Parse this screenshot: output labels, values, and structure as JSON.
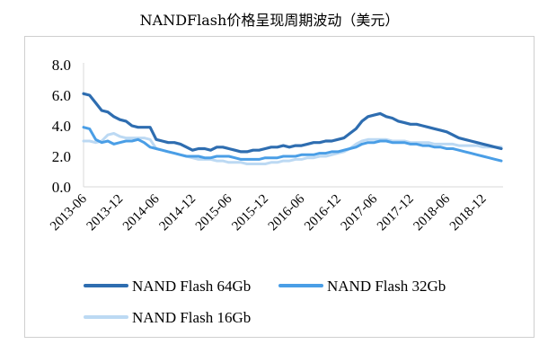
{
  "chart_data": {
    "type": "line",
    "title": "NANDFlash价格呈现周期波动（美元）",
    "xlabel": "",
    "ylabel": "",
    "ylim": [
      0,
      8
    ],
    "yticks": [
      "0.0",
      "2.0",
      "4.0",
      "6.0",
      "8.0"
    ],
    "xticks": [
      "2013-06",
      "2013-12",
      "2014-06",
      "2014-12",
      "2015-06",
      "2015-12",
      "2016-06",
      "2016-12",
      "2017-06",
      "2017-12",
      "2018-06",
      "2018-12"
    ],
    "grid": false,
    "legend_position": "bottom",
    "x": [
      "2013-06",
      "2013-07",
      "2013-08",
      "2013-09",
      "2013-10",
      "2013-11",
      "2013-12",
      "2014-01",
      "2014-02",
      "2014-03",
      "2014-04",
      "2014-05",
      "2014-06",
      "2014-07",
      "2014-08",
      "2014-09",
      "2014-10",
      "2014-11",
      "2014-12",
      "2015-01",
      "2015-02",
      "2015-03",
      "2015-04",
      "2015-05",
      "2015-06",
      "2015-07",
      "2015-08",
      "2015-09",
      "2015-10",
      "2015-11",
      "2015-12",
      "2016-01",
      "2016-02",
      "2016-03",
      "2016-04",
      "2016-05",
      "2016-06",
      "2016-07",
      "2016-08",
      "2016-09",
      "2016-10",
      "2016-11",
      "2016-12",
      "2017-01",
      "2017-02",
      "2017-03",
      "2017-04",
      "2017-05",
      "2017-06",
      "2017-07",
      "2017-08",
      "2017-09",
      "2017-10",
      "2017-11",
      "2017-12",
      "2018-01",
      "2018-02",
      "2018-03",
      "2018-04",
      "2018-05",
      "2018-06",
      "2018-07",
      "2018-08",
      "2018-09",
      "2018-10",
      "2018-11",
      "2018-12",
      "2019-01",
      "2019-02",
      "2019-03"
    ],
    "series": [
      {
        "name": "NAND Flash 64Gb",
        "color": "#2e6db0",
        "values": [
          6.1,
          6.0,
          5.5,
          5.0,
          4.9,
          4.6,
          4.4,
          4.3,
          4.0,
          3.9,
          3.9,
          3.9,
          3.1,
          3.0,
          2.9,
          2.9,
          2.8,
          2.6,
          2.4,
          2.5,
          2.5,
          2.4,
          2.6,
          2.6,
          2.5,
          2.4,
          2.3,
          2.3,
          2.4,
          2.4,
          2.5,
          2.6,
          2.6,
          2.7,
          2.6,
          2.7,
          2.7,
          2.8,
          2.9,
          2.9,
          3.0,
          3.0,
          3.1,
          3.2,
          3.5,
          3.8,
          4.3,
          4.6,
          4.7,
          4.8,
          4.6,
          4.5,
          4.3,
          4.2,
          4.1,
          4.1,
          4.0,
          3.9,
          3.8,
          3.7,
          3.6,
          3.4,
          3.2,
          3.1,
          3.0,
          2.9,
          2.8,
          2.7,
          2.6,
          2.5
        ]
      },
      {
        "name": "NAND Flash 32Gb",
        "color": "#4a9ee6",
        "values": [
          3.9,
          3.8,
          3.1,
          2.9,
          3.0,
          2.8,
          2.9,
          3.0,
          3.0,
          3.1,
          2.9,
          2.6,
          2.5,
          2.4,
          2.3,
          2.2,
          2.1,
          2.0,
          2.0,
          2.0,
          1.9,
          1.9,
          2.0,
          2.0,
          2.0,
          1.9,
          1.8,
          1.8,
          1.8,
          1.8,
          1.9,
          1.9,
          1.9,
          2.0,
          2.0,
          2.0,
          2.1,
          2.1,
          2.1,
          2.2,
          2.2,
          2.3,
          2.3,
          2.4,
          2.5,
          2.6,
          2.8,
          2.9,
          2.9,
          3.0,
          3.0,
          2.9,
          2.9,
          2.9,
          2.8,
          2.8,
          2.7,
          2.7,
          2.6,
          2.6,
          2.5,
          2.5,
          2.4,
          2.3,
          2.2,
          2.1,
          2.0,
          1.9,
          1.8,
          1.7
        ]
      },
      {
        "name": "NAND Flash 16Gb",
        "color": "#bcd9f3",
        "values": [
          3.0,
          3.0,
          2.9,
          3.0,
          3.4,
          3.5,
          3.3,
          3.2,
          3.2,
          3.2,
          3.2,
          3.1,
          2.5,
          2.4,
          2.3,
          2.2,
          2.1,
          2.0,
          1.9,
          1.8,
          1.8,
          1.8,
          1.7,
          1.7,
          1.6,
          1.6,
          1.6,
          1.5,
          1.5,
          1.5,
          1.5,
          1.6,
          1.6,
          1.7,
          1.7,
          1.8,
          1.8,
          1.9,
          1.9,
          2.0,
          2.0,
          2.1,
          2.2,
          2.3,
          2.5,
          2.8,
          3.0,
          3.1,
          3.1,
          3.1,
          3.1,
          3.0,
          3.0,
          3.0,
          2.9,
          2.9,
          2.9,
          2.9,
          2.8,
          2.8,
          2.8,
          2.8,
          2.7,
          2.7,
          2.7,
          2.7,
          2.6,
          2.6,
          2.6,
          2.6
        ]
      }
    ]
  }
}
